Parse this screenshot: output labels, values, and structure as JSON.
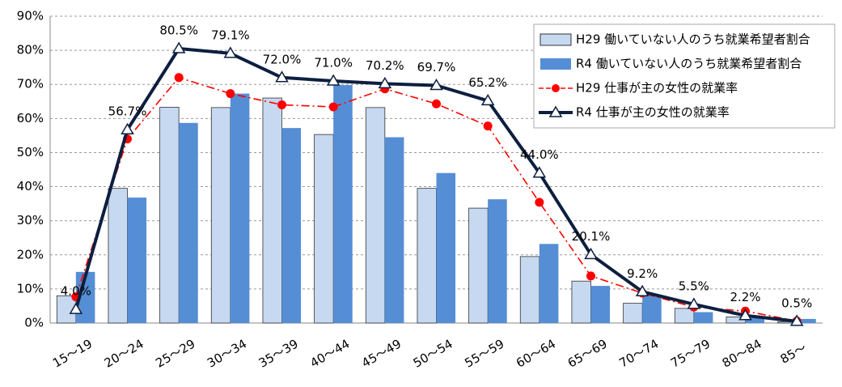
{
  "chart_data": {
    "type": "bar",
    "categories": [
      "15～19",
      "20～24",
      "25～29",
      "30～34",
      "35～39",
      "40～44",
      "45～49",
      "50～54",
      "55～59",
      "60～64",
      "65～69",
      "70～74",
      "75～79",
      "80～84",
      "85～"
    ],
    "series": [
      {
        "name": "H29 働いていない人のうち就業希望者割合",
        "type": "bar",
        "color": "#c6d9f1",
        "values": [
          8,
          39.5,
          63.3,
          63.2,
          66,
          55.3,
          63.2,
          39.5,
          33.7,
          19.5,
          12.3,
          5.8,
          4.3,
          1.8,
          0.4
        ]
      },
      {
        "name": "R4 働いていない人のうち就業希望者割合",
        "type": "bar",
        "color": "#558ed5",
        "values": [
          15,
          36.8,
          58.7,
          67.3,
          57.2,
          69.8,
          54.5,
          44,
          36.3,
          23.2,
          10.9,
          8,
          3.2,
          1.5,
          1.2
        ]
      },
      {
        "name": "H29 仕事が主の女性の就業率",
        "type": "line",
        "color": "#ff0000",
        "values": [
          7.7,
          54,
          72,
          67.3,
          64,
          63.4,
          68.7,
          64.3,
          57.8,
          35.4,
          13.8,
          8.8,
          4.7,
          3.5,
          0.6
        ]
      },
      {
        "name": "R4 仕事が主の女性の就業率",
        "type": "line",
        "color": "#0d1f3f",
        "values": [
          4.0,
          56.7,
          80.5,
          79.1,
          72.0,
          71.0,
          70.2,
          69.7,
          65.2,
          44.0,
          20.1,
          9.2,
          5.5,
          2.2,
          0.5
        ],
        "value_labels": [
          "4.0%",
          "56.7%",
          "80.5%",
          "79.1%",
          "72.0%",
          "71.0%",
          "70.2%",
          "69.7%",
          "65.2%",
          "44.0%",
          "20.1%",
          "9.2%",
          "5.5%",
          "2.2%",
          "0.5%"
        ]
      }
    ],
    "ylim": [
      0,
      90
    ],
    "yticks": [
      {
        "value": 0,
        "label": "0%"
      },
      {
        "value": 10,
        "label": "10%"
      },
      {
        "value": 20,
        "label": "20%"
      },
      {
        "value": 30,
        "label": "30%"
      },
      {
        "value": 40,
        "label": "40%"
      },
      {
        "value": 50,
        "label": "50%"
      },
      {
        "value": 60,
        "label": "60%"
      },
      {
        "value": 70,
        "label": "70%"
      },
      {
        "value": 80,
        "label": "80%"
      },
      {
        "value": 90,
        "label": "90%"
      }
    ],
    "grid": true,
    "legend": "upper right"
  }
}
